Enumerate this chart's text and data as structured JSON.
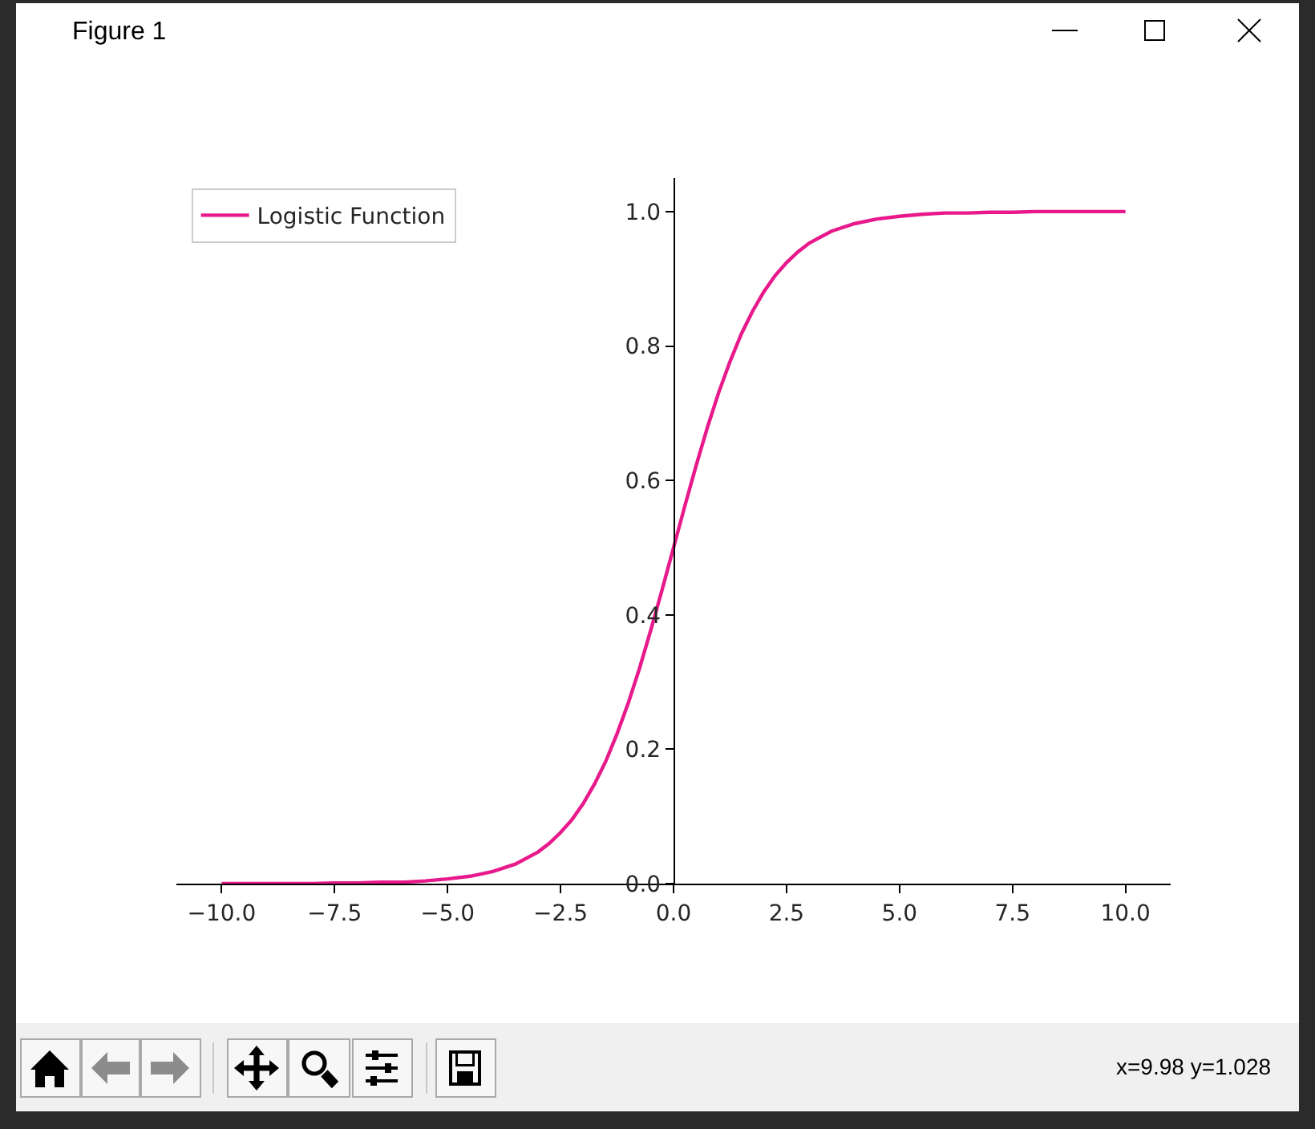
{
  "chart_data": {
    "type": "line",
    "title": "Figure 1",
    "annotations": [
      "x=9.98 y=1.028"
    ],
    "x": [
      -10,
      -9.5,
      -9,
      -8.5,
      -8,
      -7.5,
      -7,
      -6.5,
      -6,
      -5.5,
      -5,
      -4.5,
      -4,
      -3.5,
      -3,
      -2.75,
      -2.5,
      -2.25,
      -2,
      -1.75,
      -1.5,
      -1.25,
      -1,
      -0.75,
      -0.5,
      -0.25,
      0,
      0.25,
      0.5,
      0.75,
      1,
      1.25,
      1.5,
      1.75,
      2,
      2.25,
      2.5,
      2.75,
      3,
      3.5,
      4,
      4.5,
      5,
      5.5,
      6,
      6.5,
      7,
      7.5,
      8,
      8.5,
      9,
      9.5,
      10
    ],
    "series": [
      {
        "name": "Logistic Function",
        "color": "#e8198b",
        "values": [
          0.0,
          0.0,
          0.0,
          0.0,
          0.0,
          0.001,
          0.001,
          0.002,
          0.002,
          0.004,
          0.007,
          0.011,
          0.018,
          0.029,
          0.047,
          0.06,
          0.076,
          0.095,
          0.119,
          0.148,
          0.182,
          0.223,
          0.269,
          0.321,
          0.378,
          0.438,
          0.5,
          0.562,
          0.622,
          0.679,
          0.731,
          0.777,
          0.818,
          0.852,
          0.881,
          0.905,
          0.924,
          0.94,
          0.953,
          0.971,
          0.982,
          0.989,
          0.993,
          0.996,
          0.998,
          0.998,
          0.999,
          0.999,
          1.0,
          1.0,
          1.0,
          1.0,
          1.0
        ]
      }
    ],
    "xlim": [
      -11,
      11
    ],
    "xticks": [
      {
        "value": -10,
        "label": "−10.0"
      },
      {
        "value": -7.5,
        "label": "−7.5"
      },
      {
        "value": -5,
        "label": "−5.0"
      },
      {
        "value": -2.5,
        "label": "−2.5"
      },
      {
        "value": 0,
        "label": "0.0"
      },
      {
        "value": 2.5,
        "label": "2.5"
      },
      {
        "value": 5,
        "label": "5.0"
      },
      {
        "value": 7.5,
        "label": "7.5"
      },
      {
        "value": 10,
        "label": "10.0"
      }
    ],
    "ylim": [
      0,
      1.05
    ],
    "yticks": [
      {
        "value": 0,
        "label": "0.0"
      },
      {
        "value": 0.2,
        "label": "0.2"
      },
      {
        "value": 0.4,
        "label": "0.4"
      },
      {
        "value": 0.6,
        "label": "0.6"
      },
      {
        "value": 0.8,
        "label": "0.8"
      },
      {
        "value": 1,
        "label": "1.0"
      }
    ],
    "legend": "top left",
    "marker": "none",
    "line_style": "solid"
  }
}
